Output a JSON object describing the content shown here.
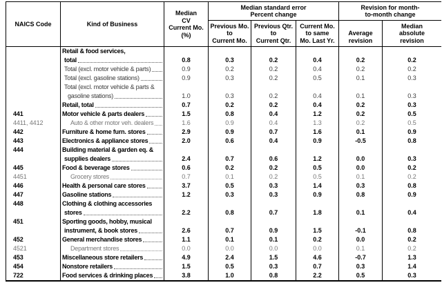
{
  "table": {
    "header": {
      "naics": "NAICS Code",
      "kind": "Kind of Business",
      "median_cv_lines": [
        "Median",
        "CV",
        "Current Mo.",
        "(%)"
      ],
      "group_standard_error_lines": [
        "Median standard error",
        "Percent change"
      ],
      "group_revision_lines": [
        "Revision for month-",
        "to-month change"
      ],
      "sub_prev_mo_lines": [
        "Previous Mo.",
        "to",
        "Current Mo."
      ],
      "sub_prev_qtr_lines": [
        "Previous Qtr.",
        "to",
        "Current Qtr."
      ],
      "sub_curr_mo_lines": [
        "Current Mo.",
        "to same",
        "Mo. Last Yr."
      ],
      "sub_avg_lines": [
        "Average",
        "revision"
      ],
      "sub_med_abs_lines": [
        "Median",
        "absolute",
        "revision"
      ]
    },
    "columns": [
      "NAICS Code",
      "Kind of Business",
      "Median CV Current Mo. (%)",
      "Previous Mo. to Current Mo.",
      "Previous Qtr. to Current Qtr.",
      "Current Mo. to same Mo. Last Yr.",
      "Average revision",
      "Median absolute revision"
    ],
    "rows": [
      {
        "code": "",
        "label": "Retail & food services,",
        "indent": 0,
        "style": "bold",
        "leader": false,
        "values": null
      },
      {
        "code": "",
        "label": "total",
        "indent": 1,
        "style": "bold",
        "leader": true,
        "values": [
          "0.8",
          "0.3",
          "0.2",
          "0.4",
          "0.2",
          "0.2"
        ]
      },
      {
        "code": "",
        "label": "Total (excl. motor vehicle & parts)",
        "indent": 1,
        "style": "plain",
        "leader": true,
        "values": [
          "0.9",
          "0.2",
          "0.2",
          "0.4",
          "0.2",
          "0.2"
        ]
      },
      {
        "code": "",
        "label": "Total (excl. gasoline stations)",
        "indent": 1,
        "style": "plain",
        "leader": true,
        "values": [
          "0.9",
          "0.3",
          "0.2",
          "0.5",
          "0.1",
          "0.3"
        ]
      },
      {
        "code": "",
        "label": "Total (excl. motor vehicle & parts &",
        "indent": 1,
        "style": "plain",
        "leader": false,
        "values": null
      },
      {
        "code": "",
        "label": "gasoline stations)",
        "indent": 2,
        "style": "plain",
        "leader": true,
        "values": [
          "1.0",
          "0.3",
          "0.2",
          "0.4",
          "0.1",
          "0.3"
        ]
      },
      {
        "code": "",
        "label": "Retail, total",
        "indent": 0,
        "style": "bold",
        "leader": true,
        "values": [
          "0.7",
          "0.2",
          "0.2",
          "0.4",
          "0.2",
          "0.3"
        ]
      },
      {
        "code": "441",
        "label": "Motor vehicle & parts dealers",
        "indent": 0,
        "style": "bold",
        "leader": true,
        "values": [
          "1.5",
          "0.8",
          "0.4",
          "1.2",
          "0.2",
          "0.5"
        ]
      },
      {
        "code": "4411, 4412",
        "label": "Auto & other motor veh. dealers",
        "indent": 3,
        "style": "sub",
        "leader": true,
        "values": [
          "1.6",
          "0.9",
          "0.4",
          "1.3",
          "0.2",
          "0.5"
        ]
      },
      {
        "code": "442",
        "label": "Furniture & home furn. stores",
        "indent": 0,
        "style": "bold",
        "leader": true,
        "values": [
          "2.9",
          "0.9",
          "0.7",
          "1.6",
          "0.1",
          "0.9"
        ]
      },
      {
        "code": "443",
        "label": "Electronics & appliance stores",
        "indent": 0,
        "style": "bold",
        "leader": true,
        "values": [
          "2.0",
          "0.6",
          "0.4",
          "0.9",
          "-0.5",
          "0.8"
        ]
      },
      {
        "code": "444",
        "label": "Building material & garden eq. &",
        "indent": 0,
        "style": "bold",
        "leader": false,
        "values": null
      },
      {
        "code": "",
        "label": "supplies dealers",
        "indent": 1,
        "style": "bold",
        "leader": true,
        "values": [
          "2.4",
          "0.7",
          "0.6",
          "1.2",
          "0.0",
          "0.3"
        ]
      },
      {
        "code": "445",
        "label": "Food & beverage stores",
        "indent": 0,
        "style": "bold",
        "leader": true,
        "values": [
          "0.6",
          "0.2",
          "0.2",
          "0.5",
          "0.0",
          "0.2"
        ]
      },
      {
        "code": "4451",
        "label": "Grocery stores",
        "indent": 3,
        "style": "sub",
        "leader": true,
        "values": [
          "0.7",
          "0.1",
          "0.2",
          "0.5",
          "0.1",
          "0.2"
        ]
      },
      {
        "code": "446",
        "label": "Health & personal care stores",
        "indent": 0,
        "style": "bold",
        "leader": true,
        "values": [
          "3.7",
          "0.5",
          "0.3",
          "1.4",
          "0.3",
          "0.8"
        ]
      },
      {
        "code": "447",
        "label": "Gasoline stations",
        "indent": 0,
        "style": "bold",
        "leader": true,
        "values": [
          "1.2",
          "0.3",
          "0.3",
          "0.9",
          "0.8",
          "0.9"
        ]
      },
      {
        "code": "448",
        "label": "Clothing & clothing accessories",
        "indent": 0,
        "style": "bold",
        "leader": false,
        "values": null
      },
      {
        "code": "",
        "label": "stores",
        "indent": 1,
        "style": "bold",
        "leader": true,
        "values": [
          "2.2",
          "0.8",
          "0.7",
          "1.8",
          "0.1",
          "0.4"
        ]
      },
      {
        "code": "451",
        "label": "Sporting goods, hobby, musical",
        "indent": 0,
        "style": "bold",
        "leader": false,
        "values": null
      },
      {
        "code": "",
        "label": "instrument, & book stores",
        "indent": 1,
        "style": "bold",
        "leader": true,
        "values": [
          "2.6",
          "0.7",
          "0.9",
          "1.5",
          "-0.1",
          "0.8"
        ]
      },
      {
        "code": "452",
        "label": "General merchandise stores",
        "indent": 0,
        "style": "bold",
        "leader": true,
        "values": [
          "1.1",
          "0.1",
          "0.1",
          "0.2",
          "0.0",
          "0.2"
        ]
      },
      {
        "code": "4521",
        "label": "Department stores",
        "indent": 3,
        "style": "sub",
        "leader": true,
        "values": [
          "0.0",
          "0.0",
          "0.0",
          "0.0",
          "0.1",
          "0.2"
        ]
      },
      {
        "code": "453",
        "label": "Miscellaneous store retailers",
        "indent": 0,
        "style": "bold",
        "leader": true,
        "values": [
          "4.9",
          "2.4",
          "1.5",
          "4.6",
          "-0.7",
          "1.3"
        ]
      },
      {
        "code": "454",
        "label": "Nonstore retailers",
        "indent": 0,
        "style": "bold",
        "leader": true,
        "values": [
          "1.5",
          "0.5",
          "0.3",
          "0.7",
          "0.3",
          "1.4"
        ]
      },
      {
        "code": "722",
        "label": "Food services & drinking places",
        "indent": 0,
        "style": "bold",
        "leader": true,
        "values": [
          "3.8",
          "1.0",
          "0.8",
          "2.2",
          "0.5",
          "0.3"
        ]
      }
    ]
  }
}
